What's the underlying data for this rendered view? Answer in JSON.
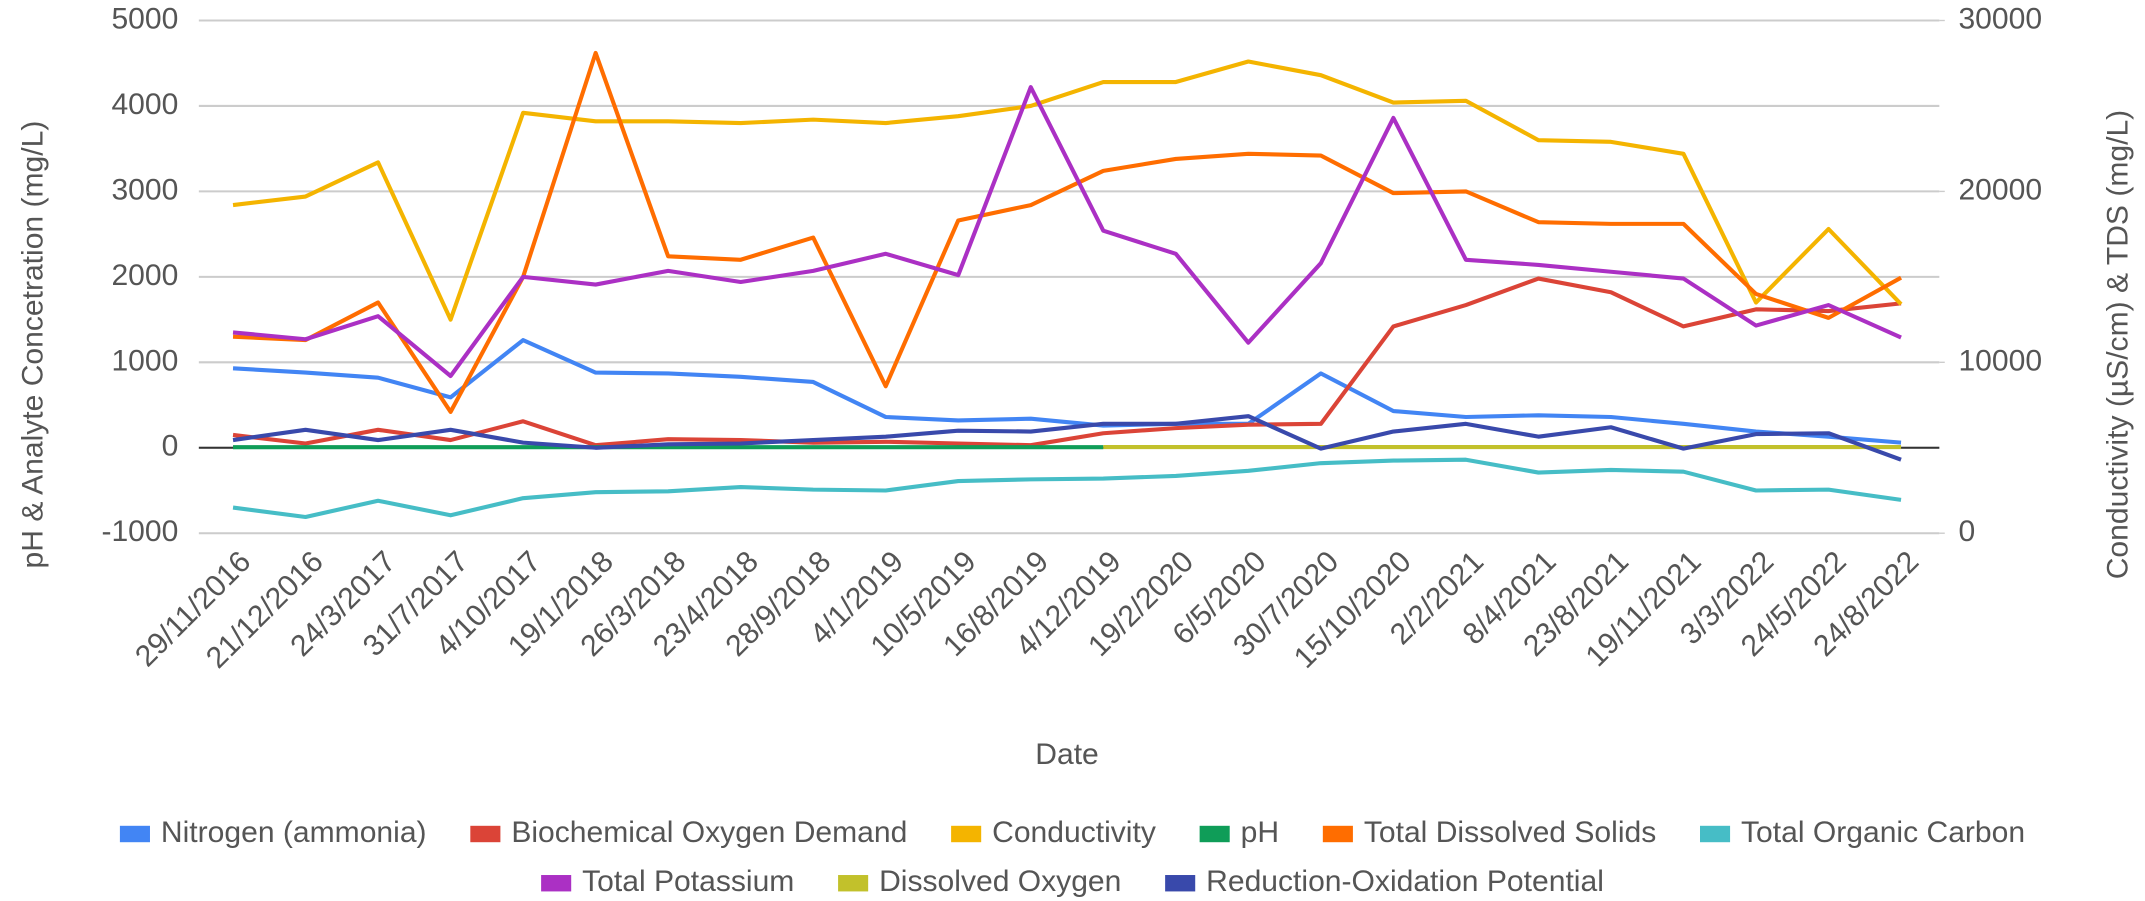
{
  "chart_data": {
    "type": "line",
    "x_label": "Date",
    "y_label": "pH & Analyte Concetration (mg/L)",
    "y2_label": "Conductivity (µS/cm) & TDS (mg/L)",
    "categories": [
      "29/11/2016",
      "21/12/2016",
      "24/3/2017",
      "31/7/2017",
      "4/10/2017",
      "19/1/2018",
      "26/3/2018",
      "23/4/2018",
      "28/9/2018",
      "4/1/2019",
      "10/5/2019",
      "16/8/2019",
      "4/12/2019",
      "19/2/2020",
      "6/5/2020",
      "30/7/2020",
      "15/10/2020",
      "2/2/2021",
      "8/4/2021",
      "23/8/2021",
      "19/11/2021",
      "3/3/2022",
      "24/5/2022",
      "24/8/2022"
    ],
    "ylim": [
      -1000,
      5000
    ],
    "yticks": [
      -1000,
      0,
      1000,
      2000,
      3000,
      4000,
      5000
    ],
    "y2lim": [
      0,
      30000
    ],
    "y2ticks": [
      0,
      10000,
      20000,
      30000
    ],
    "grid": true,
    "legend": "bottom",
    "series": [
      {
        "name": "Nitrogen (ammonia)",
        "color": "#4285f4",
        "values": [
          930,
          880,
          820,
          590,
          1260,
          880,
          870,
          830,
          770,
          360,
          320,
          340,
          260,
          280,
          280,
          870,
          430,
          360,
          380,
          360,
          280,
          190,
          130,
          60
        ]
      },
      {
        "name": "Biochemical Oxygen Demand",
        "color": "#db4437",
        "values": [
          150,
          50,
          210,
          90,
          310,
          30,
          100,
          90,
          60,
          70,
          50,
          30,
          170,
          230,
          270,
          280,
          1420,
          1670,
          1980,
          1820,
          1420,
          1620,
          1600,
          1690
        ]
      },
      {
        "name": "Conductivity",
        "color": "#f4b400",
        "axis": "y2",
        "values": [
          19200,
          19700,
          21700,
          12500,
          24600,
          24100,
          24100,
          24000,
          24200,
          24000,
          24400,
          25000,
          26400,
          26400,
          27600,
          26800,
          25200,
          25300,
          23000,
          22900,
          22200,
          13500,
          17800,
          13400
        ]
      },
      {
        "name": "pH",
        "color": "#0f9d58",
        "values": [
          7,
          7,
          7,
          7,
          7,
          7,
          7,
          7,
          7,
          7,
          7,
          7,
          7,
          null,
          null,
          null,
          null,
          null,
          null,
          null,
          null,
          null,
          null,
          null
        ]
      },
      {
        "name": "Total Dissolved Solids",
        "color": "#ff6d00",
        "axis": "y2",
        "values": [
          11500,
          11300,
          13500,
          7100,
          15000,
          28100,
          16200,
          16000,
          17300,
          8600,
          18300,
          19200,
          21200,
          21900,
          22200,
          22100,
          19900,
          20000,
          18200,
          18100,
          18100,
          14000,
          12600,
          14950
        ]
      },
      {
        "name": "Total Organic Carbon",
        "color": "#46bdc6",
        "values": [
          -700,
          -810,
          -620,
          -790,
          -590,
          -520,
          -510,
          -460,
          -490,
          -500,
          -390,
          -370,
          -360,
          -330,
          -270,
          -180,
          -150,
          -140,
          -290,
          -260,
          -280,
          -500,
          -490,
          -610
        ]
      },
      {
        "name": "Total Potassium",
        "color": "#ab30c4",
        "values": [
          1350,
          1270,
          1540,
          840,
          2000,
          1910,
          2070,
          1940,
          2070,
          2270,
          2020,
          4220,
          2540,
          2270,
          1230,
          2160,
          3860,
          2200,
          2140,
          2060,
          1980,
          1430,
          1670,
          1290
        ]
      },
      {
        "name": "Dissolved Oxygen",
        "color": "#c2c12b",
        "values": [
          null,
          null,
          null,
          null,
          null,
          null,
          null,
          null,
          null,
          null,
          null,
          null,
          8,
          8,
          8,
          8,
          8,
          8,
          8,
          8,
          8,
          8,
          8,
          8
        ]
      },
      {
        "name": "Reduction-Oxidation Potential",
        "color": "#3949ab",
        "values": [
          90,
          210,
          90,
          210,
          60,
          0,
          40,
          50,
          90,
          130,
          200,
          190,
          280,
          280,
          370,
          -10,
          190,
          280,
          130,
          240,
          -10,
          160,
          170,
          -140
        ]
      }
    ]
  }
}
